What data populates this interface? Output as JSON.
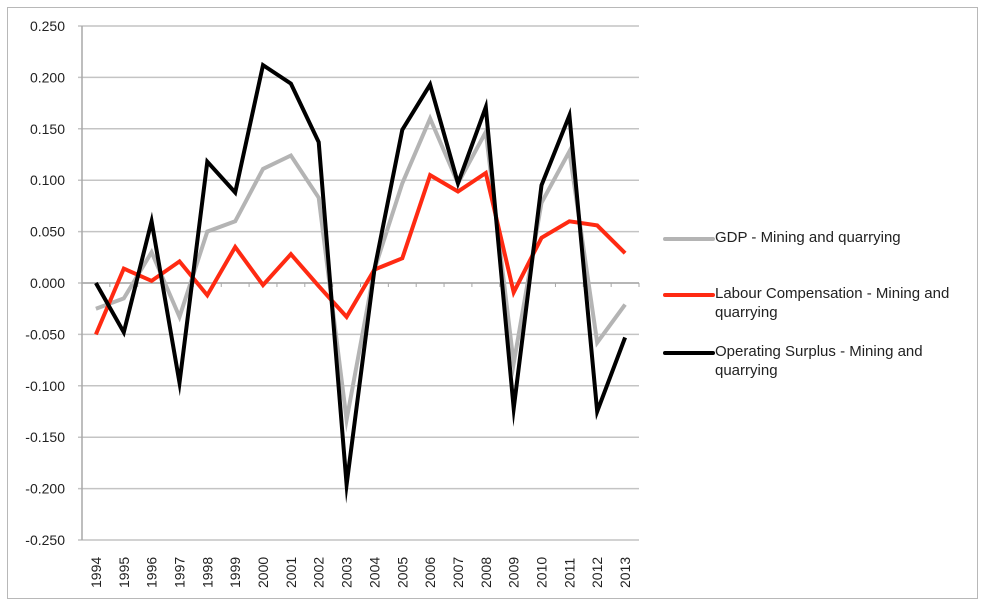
{
  "chart_data": {
    "type": "line",
    "title": "",
    "xlabel": "",
    "ylabel": "",
    "categories": [
      "1994",
      "1995",
      "1996",
      "1997",
      "1998",
      "1999",
      "2000",
      "2001",
      "2002",
      "2003",
      "2004",
      "2005",
      "2006",
      "2007",
      "2008",
      "2009",
      "2010",
      "2011",
      "2012",
      "2013"
    ],
    "ylim": [
      -0.25,
      0.25
    ],
    "yticks": [
      "0.250",
      "0.200",
      "0.150",
      "0.100",
      "0.050",
      "0.000",
      "-0.050",
      "-0.100",
      "-0.150",
      "-0.200",
      "-0.250"
    ],
    "ytick_values": [
      0.25,
      0.2,
      0.15,
      0.1,
      0.05,
      0.0,
      -0.05,
      -0.1,
      -0.15,
      -0.2,
      -0.25
    ],
    "grid": true,
    "legend_position": "right",
    "series": [
      {
        "name": "GDP - Mining and quarrying",
        "color": "#b4b4b4",
        "values": [
          -0.025,
          -0.015,
          0.03,
          -0.033,
          0.05,
          0.06,
          0.111,
          0.124,
          0.083,
          -0.133,
          0.013,
          0.097,
          0.16,
          0.097,
          0.147,
          -0.078,
          0.078,
          0.128,
          -0.058,
          -0.021
        ]
      },
      {
        "name": "Labour Compensation - Mining and quarrying",
        "color": "#ff2a12",
        "values": [
          -0.05,
          0.014,
          0.002,
          0.021,
          -0.012,
          0.035,
          -0.002,
          0.028,
          -0.003,
          -0.033,
          0.013,
          0.024,
          0.105,
          0.089,
          0.107,
          -0.009,
          0.044,
          0.06,
          0.056,
          0.029
        ]
      },
      {
        "name": "Operating Surplus - Mining and quarrying",
        "color": "#000000",
        "values": [
          0.0,
          -0.048,
          0.06,
          -0.097,
          0.118,
          0.088,
          0.212,
          0.194,
          0.137,
          -0.196,
          0.013,
          0.149,
          0.193,
          0.097,
          0.171,
          -0.122,
          0.095,
          0.163,
          -0.125,
          -0.053
        ]
      }
    ]
  },
  "legend": {
    "items": [
      {
        "line1": "GDP - Mining and quarrying",
        "line2": ""
      },
      {
        "line1": "Labour Compensation - Mining and",
        "line2": "quarrying"
      },
      {
        "line1": "Operating Surplus - Mining and",
        "line2": "quarrying"
      }
    ]
  }
}
